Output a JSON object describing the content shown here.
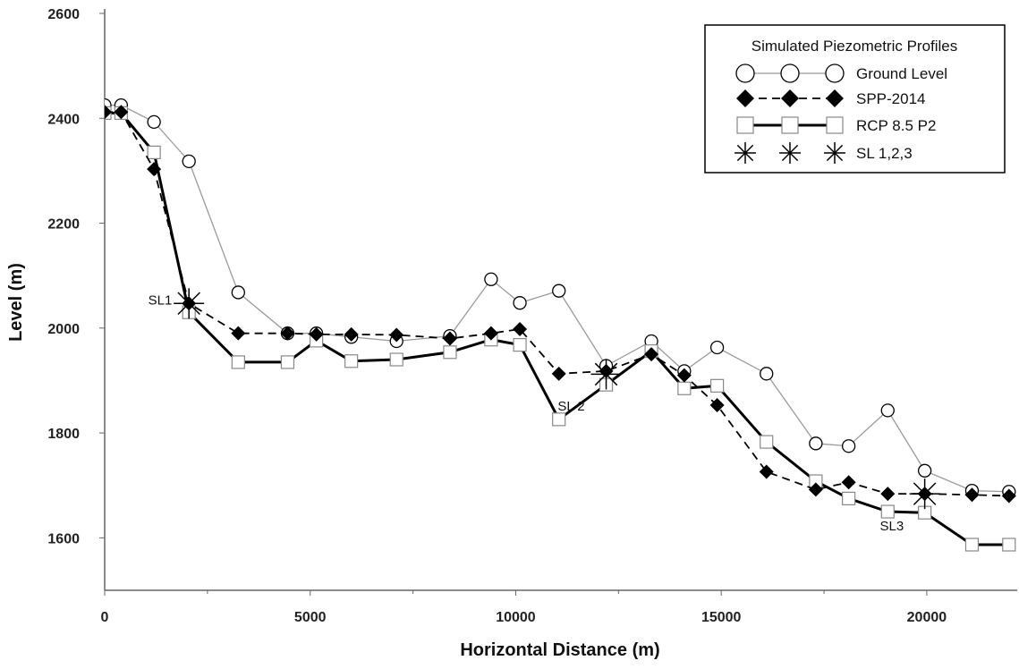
{
  "chart_data": {
    "type": "line",
    "title": "",
    "xlabel": "Horizontal Distance (m)",
    "ylabel": "Level (m)",
    "xlim": [
      0,
      22200
    ],
    "ylim": [
      1500,
      2600
    ],
    "x_ticks": [
      0,
      5000,
      10000,
      15000,
      20000
    ],
    "y_ticks": [
      1600,
      1800,
      2000,
      2200,
      2400,
      2600
    ],
    "x_tick_labels": [
      "0",
      "5000",
      "10000",
      "15000",
      "20000"
    ],
    "y_tick_labels": [
      "1600",
      "1800",
      "2000",
      "2200",
      "2400",
      "2600"
    ],
    "grid": false,
    "legend": {
      "title": "Simulated Piezometric Profiles",
      "placement": "top-right"
    },
    "series": [
      {
        "name": "Ground Level",
        "marker": "circle",
        "line": "thin-gray",
        "color": "#999999",
        "points": [
          [
            0,
            2425
          ],
          [
            400,
            2425
          ],
          [
            1200,
            2393
          ],
          [
            2050,
            2318
          ],
          [
            3250,
            2068
          ],
          [
            4450,
            1990
          ],
          [
            5150,
            1990
          ],
          [
            6000,
            1983
          ],
          [
            7100,
            1975
          ],
          [
            8400,
            1985
          ],
          [
            9400,
            2093
          ],
          [
            10100,
            2048
          ],
          [
            11050,
            2071
          ],
          [
            12200,
            1928
          ],
          [
            13300,
            1975
          ],
          [
            14100,
            1918
          ],
          [
            14900,
            1963
          ],
          [
            16100,
            1913
          ],
          [
            17300,
            1780
          ],
          [
            18100,
            1775
          ],
          [
            19050,
            1843
          ],
          [
            19950,
            1728
          ],
          [
            21100,
            1690
          ],
          [
            22000,
            1688
          ]
        ]
      },
      {
        "name": "SPP-2014",
        "marker": "diamond",
        "line": "dashed",
        "color": "#000000",
        "points": [
          [
            0,
            2412
          ],
          [
            400,
            2412
          ],
          [
            1200,
            2303
          ],
          [
            2050,
            2047
          ],
          [
            3250,
            1990
          ],
          [
            4450,
            1990
          ],
          [
            5150,
            1988
          ],
          [
            6000,
            1988
          ],
          [
            7100,
            1987
          ],
          [
            8400,
            1980
          ],
          [
            9400,
            1990
          ],
          [
            10100,
            1998
          ],
          [
            11050,
            1913
          ],
          [
            12200,
            1918
          ],
          [
            13300,
            1950
          ],
          [
            14100,
            1910
          ],
          [
            14900,
            1853
          ],
          [
            16100,
            1726
          ],
          [
            17300,
            1692
          ],
          [
            18100,
            1706
          ],
          [
            19050,
            1684
          ],
          [
            19950,
            1684
          ],
          [
            21100,
            1682
          ],
          [
            22000,
            1680
          ]
        ]
      },
      {
        "name": "RCP 8.5 P2",
        "marker": "square",
        "line": "solid-thick",
        "color": "#000000",
        "points": [
          [
            0,
            2410
          ],
          [
            400,
            2410
          ],
          [
            1200,
            2335
          ],
          [
            2050,
            2030
          ],
          [
            3250,
            1935
          ],
          [
            4450,
            1935
          ],
          [
            5150,
            1976
          ],
          [
            6000,
            1937
          ],
          [
            7100,
            1940
          ],
          [
            8400,
            1954
          ],
          [
            9400,
            1978
          ],
          [
            10100,
            1968
          ],
          [
            11050,
            1826
          ],
          [
            12200,
            1892
          ],
          [
            13300,
            1956
          ],
          [
            14100,
            1885
          ],
          [
            14900,
            1890
          ],
          [
            16100,
            1783
          ],
          [
            17300,
            1708
          ],
          [
            18100,
            1675
          ],
          [
            19050,
            1650
          ],
          [
            19950,
            1648
          ],
          [
            21100,
            1587
          ],
          [
            22000,
            1587
          ]
        ]
      },
      {
        "name": "SL 1,2,3",
        "marker": "asterisk",
        "line": "none",
        "color": "#000000",
        "points": [
          [
            2050,
            2047
          ],
          [
            12200,
            1912
          ],
          [
            19950,
            1684
          ]
        ]
      }
    ],
    "annotations": [
      {
        "text": "SL1",
        "x": 1350,
        "y": 2045
      },
      {
        "text": "SL 2",
        "x": 11350,
        "y": 1843
      },
      {
        "text": "SL3",
        "x": 19150,
        "y": 1614
      }
    ]
  }
}
